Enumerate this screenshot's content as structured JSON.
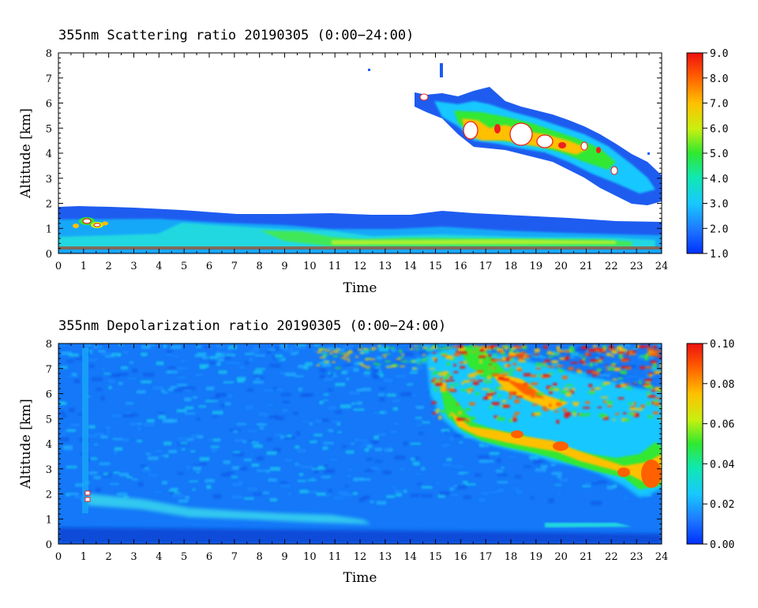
{
  "chart_data": [
    {
      "type": "heatmap",
      "title": "355nm Scattering ratio  20190305 (0:00−24:00)",
      "xlabel": "Time",
      "ylabel": "Altitude [km]",
      "xlim": [
        0,
        24
      ],
      "ylim": [
        0,
        8
      ],
      "x_ticks": [
        "0",
        "1",
        "2",
        "3",
        "4",
        "5",
        "6",
        "7",
        "8",
        "9",
        "10",
        "11",
        "12",
        "13",
        "14",
        "15",
        "16",
        "17",
        "18",
        "19",
        "20",
        "21",
        "22",
        "23",
        "24"
      ],
      "y_ticks": [
        "0",
        "1",
        "2",
        "3",
        "4",
        "5",
        "6",
        "7",
        "8"
      ],
      "colorbar": {
        "min": 1.0,
        "max": 9.0,
        "ticks": [
          "1.0",
          "2.0",
          "3.0",
          "4.0",
          "5.0",
          "6.0",
          "7.0",
          "8.0",
          "9.0"
        ]
      },
      "features": [
        {
          "name": "boundary layer",
          "x_range": [
            0,
            24
          ],
          "top_km": [
            1.9,
            1.8,
            1.6,
            1.5,
            1.4,
            1.4,
            1.7,
            1.5,
            1.3,
            1.3
          ]
        },
        {
          "name": "high cloud",
          "x_range": [
            14.2,
            24
          ],
          "top_km": [
            6.4,
            6.3,
            6.2,
            6.0,
            5.5,
            5.0,
            4.5,
            4.0,
            3.3
          ],
          "base_km": [
            5.5,
            4.8,
            4.3,
            4.1,
            4.0,
            3.6,
            3.0,
            2.5,
            2.1
          ]
        }
      ]
    },
    {
      "type": "heatmap",
      "title": "355nm Depolarization ratio  20190305 (0:00−24:00)",
      "xlabel": "Time",
      "ylabel": "Altitude [km]",
      "xlim": [
        0,
        24
      ],
      "ylim": [
        0,
        8
      ],
      "x_ticks": [
        "0",
        "1",
        "2",
        "3",
        "4",
        "5",
        "6",
        "7",
        "8",
        "9",
        "10",
        "11",
        "12",
        "13",
        "14",
        "15",
        "16",
        "17",
        "18",
        "19",
        "20",
        "21",
        "22",
        "23",
        "24"
      ],
      "y_ticks": [
        "0",
        "1",
        "2",
        "3",
        "4",
        "5",
        "6",
        "7",
        "8"
      ],
      "colorbar": {
        "min": 0.0,
        "max": 0.1,
        "ticks": [
          "0.00",
          "0.02",
          "0.04",
          "0.06",
          "0.08",
          "0.10"
        ]
      },
      "features": [
        {
          "name": "ice cloud depolarization",
          "x_range": [
            15,
            24
          ],
          "altitude_km": [
            5.0,
            4.5,
            4.2,
            4.0,
            3.6,
            3.2,
            2.8,
            2.6,
            2.4
          ]
        }
      ]
    }
  ]
}
